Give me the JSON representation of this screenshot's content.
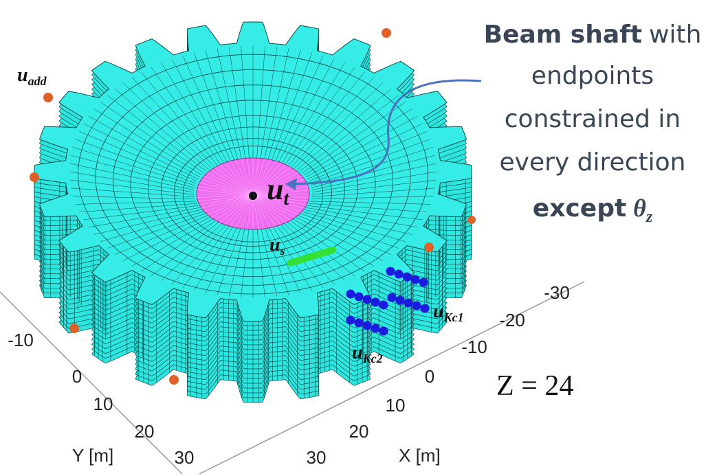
{
  "annotation": {
    "bold_term": "Beam shaft",
    "line1": "with",
    "line2": "endpoints",
    "line3": "constrained in",
    "line4": "every direction",
    "except": "except",
    "symbol": "θ",
    "subscript": "z"
  },
  "labels": {
    "add": {
      "symbol": "u",
      "subscript": "add"
    },
    "t": {
      "symbol": "u",
      "subscript": "t"
    },
    "s": {
      "symbol": "u",
      "subscript": "s"
    },
    "kc1": {
      "symbol": "u",
      "subscript": "Kc1"
    },
    "kc2": {
      "symbol": "u",
      "subscript": "Kc2"
    }
  },
  "teeth_label": "Z = 24",
  "y_axis": {
    "label": "Y [m]",
    "ticks": [
      "-10",
      "0",
      "10",
      "20",
      "30"
    ]
  },
  "x_axis": {
    "label": "X [m]",
    "ticks": [
      "-30",
      "-20",
      "-10",
      "0",
      "10",
      "20",
      "30"
    ]
  }
}
